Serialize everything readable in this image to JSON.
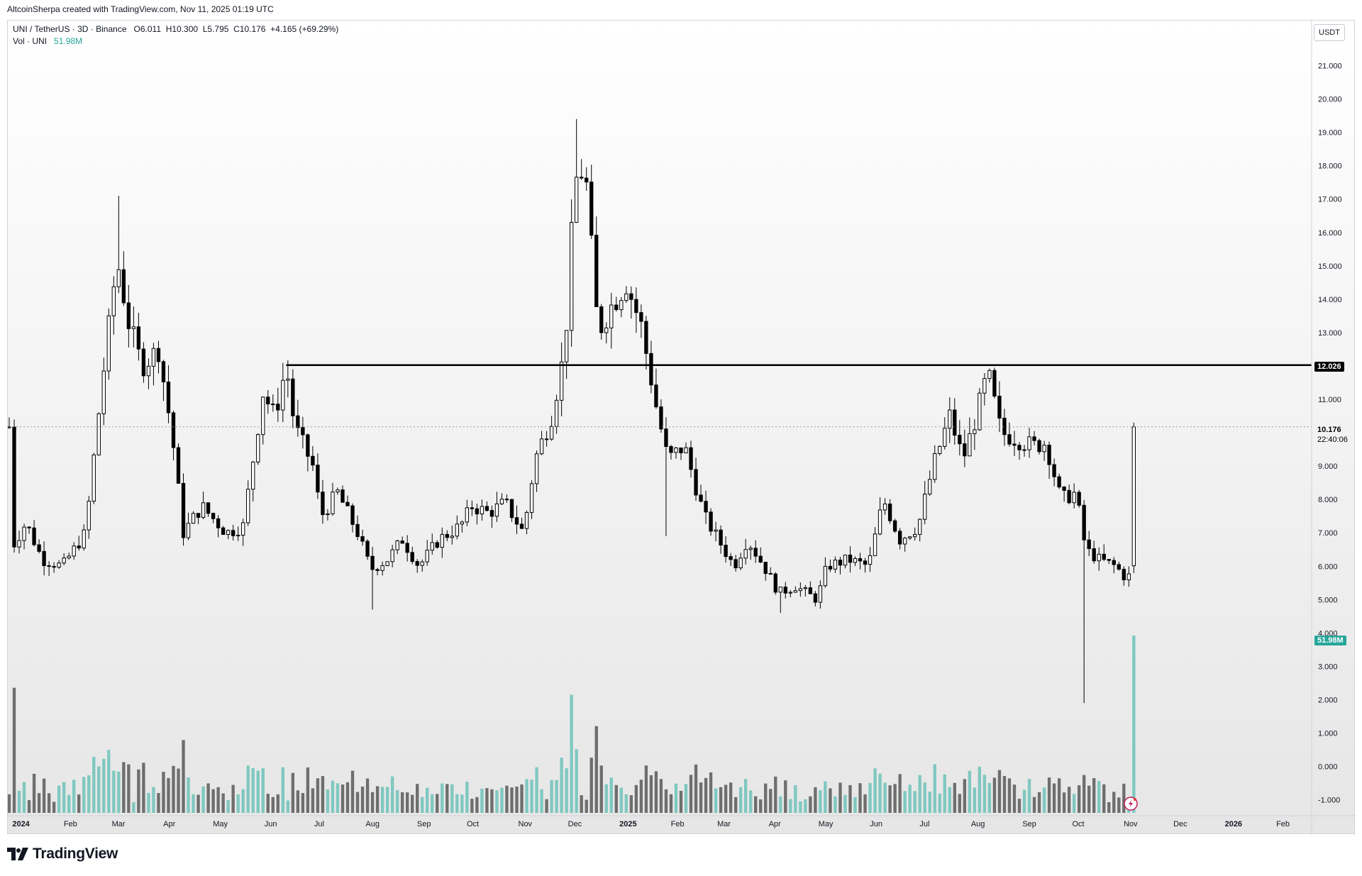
{
  "header": {
    "credit": "AltcoinSherpa created with TradingView.com, Nov 11, 2025 01:19 UTC"
  },
  "legend": {
    "symbol": "UNI / TetherUS · 3D · Binance",
    "open": "O6.011",
    "high": "H10.300",
    "low": "L5.795",
    "close": "C10.176",
    "change": "+4.165 (+69.29%)",
    "vol_label": "Vol · UNI",
    "vol_value": "51.98M"
  },
  "price_axis": {
    "currency": "USDT",
    "ticks": [
      "21.000",
      "20.000",
      "19.000",
      "18.000",
      "17.000",
      "16.000",
      "15.000",
      "14.000",
      "13.000",
      "11.000",
      "9.000",
      "8.000",
      "7.000",
      "6.000",
      "5.000",
      "4.000",
      "3.000",
      "2.000",
      "1.000",
      "0.000",
      "-1.000"
    ],
    "level_label": "12.026",
    "last_price_label": "10.176",
    "countdown": "22:40:06",
    "volume_label": "51.98M"
  },
  "time_axis": {
    "ticks": [
      "2024",
      "Feb",
      "Mar",
      "Apr",
      "May",
      "Jun",
      "Jul",
      "Aug",
      "Sep",
      "Oct",
      "Nov",
      "Dec",
      "2025",
      "Feb",
      "Mar",
      "Apr",
      "May",
      "Jun",
      "Jul",
      "Aug",
      "Sep",
      "Oct",
      "Nov",
      "Dec",
      "2026",
      "Feb"
    ]
  },
  "footer": {
    "brand": "TradingView",
    "logo_icon": "tradingview-logo-icon"
  },
  "colors": {
    "up": "#ffffff",
    "down": "#000000",
    "vol_up": "#7fc8c0",
    "vol_down": "#6e6e6e",
    "accent": "#26a69a"
  },
  "chart_data": {
    "type": "candlestick",
    "symbol": "UNI / TetherUS",
    "interval": "3D",
    "exchange": "Binance",
    "y_range": [
      -1.2,
      21.6
    ],
    "horizontal_level": 12.026,
    "last_price": 10.176,
    "last_volume": "51.98M",
    "anchors": [
      [
        "2024-01-01",
        6.5
      ],
      [
        "2024-01-10",
        7.3
      ],
      [
        "2024-01-20",
        6.2
      ],
      [
        "2024-02-01",
        6.0
      ],
      [
        "2024-02-15",
        7.0
      ],
      [
        "2024-02-25",
        11.5
      ],
      [
        "2024-03-05",
        15.2
      ],
      [
        "2024-03-12",
        13.3
      ],
      [
        "2024-03-20",
        12.0
      ],
      [
        "2024-03-30",
        12.5
      ],
      [
        "2024-04-07",
        10.0
      ],
      [
        "2024-04-14",
        7.0
      ],
      [
        "2024-04-25",
        7.8
      ],
      [
        "2024-05-10",
        7.0
      ],
      [
        "2024-05-20",
        7.2
      ],
      [
        "2024-06-01",
        11.2
      ],
      [
        "2024-06-08",
        10.5
      ],
      [
        "2024-06-15",
        12.0
      ],
      [
        "2024-06-20",
        10.2
      ],
      [
        "2024-07-01",
        9.0
      ],
      [
        "2024-07-06",
        7.5
      ],
      [
        "2024-07-16",
        8.2
      ],
      [
        "2024-07-28",
        7.0
      ],
      [
        "2024-08-05",
        5.9
      ],
      [
        "2024-08-15",
        6.2
      ],
      [
        "2024-08-24",
        6.8
      ],
      [
        "2024-09-03",
        6.0
      ],
      [
        "2024-09-15",
        6.8
      ],
      [
        "2024-09-28",
        7.2
      ],
      [
        "2024-10-05",
        7.8
      ],
      [
        "2024-10-15",
        7.6
      ],
      [
        "2024-10-25",
        7.9
      ],
      [
        "2024-11-05",
        7.0
      ],
      [
        "2024-11-12",
        9.2
      ],
      [
        "2024-11-22",
        10.5
      ],
      [
        "2024-11-30",
        12.5
      ],
      [
        "2024-12-06",
        17.5
      ],
      [
        "2024-12-12",
        18.0
      ],
      [
        "2024-12-20",
        13.0
      ],
      [
        "2024-12-28",
        13.8
      ],
      [
        "2025-01-06",
        14.5
      ],
      [
        "2025-01-15",
        13.2
      ],
      [
        "2025-01-24",
        10.8
      ],
      [
        "2025-01-31",
        9.2
      ],
      [
        "2025-02-10",
        9.6
      ],
      [
        "2025-02-22",
        7.5
      ],
      [
        "2025-03-06",
        6.5
      ],
      [
        "2025-03-12",
        6.0
      ],
      [
        "2025-03-20",
        6.8
      ],
      [
        "2025-03-30",
        6.0
      ],
      [
        "2025-04-08",
        5.2
      ],
      [
        "2025-04-18",
        5.4
      ],
      [
        "2025-05-01",
        5.0
      ],
      [
        "2025-05-07",
        6.0
      ],
      [
        "2025-05-20",
        6.2
      ],
      [
        "2025-06-01",
        6.0
      ],
      [
        "2025-06-10",
        8.0
      ],
      [
        "2025-06-20",
        6.8
      ],
      [
        "2025-07-01",
        7.2
      ],
      [
        "2025-07-10",
        9.0
      ],
      [
        "2025-07-20",
        10.5
      ],
      [
        "2025-07-28",
        9.2
      ],
      [
        "2025-08-05",
        10.5
      ],
      [
        "2025-08-12",
        11.8
      ],
      [
        "2025-08-20",
        10.0
      ],
      [
        "2025-08-30",
        9.8
      ],
      [
        "2025-09-08",
        9.6
      ],
      [
        "2025-09-16",
        9.7
      ],
      [
        "2025-09-25",
        8.0
      ],
      [
        "2025-10-04",
        8.2
      ],
      [
        "2025-10-10",
        6.5
      ],
      [
        "2025-10-18",
        6.2
      ],
      [
        "2025-10-28",
        6.0
      ],
      [
        "2025-11-04",
        5.6
      ],
      [
        "2025-11-07",
        5.9
      ],
      [
        "2025-11-10",
        10.176
      ]
    ],
    "extremes": {
      "2024-03-07": [
        15.2,
        17.1
      ],
      "2024-08-05": [
        5.5,
        4.7
      ],
      "2024-12-06": [
        16.5,
        19.4
      ],
      "2025-01-31": [
        8.5,
        6.9
      ],
      "2025-04-08": [
        5.0,
        4.6
      ],
      "2025-10-10": [
        6.3,
        1.9
      ],
      "2025-11-07": [
        5.4,
        4.8
      ]
    },
    "volume_scale_ref": {
      "value": 51.98,
      "unit": "M"
    }
  }
}
